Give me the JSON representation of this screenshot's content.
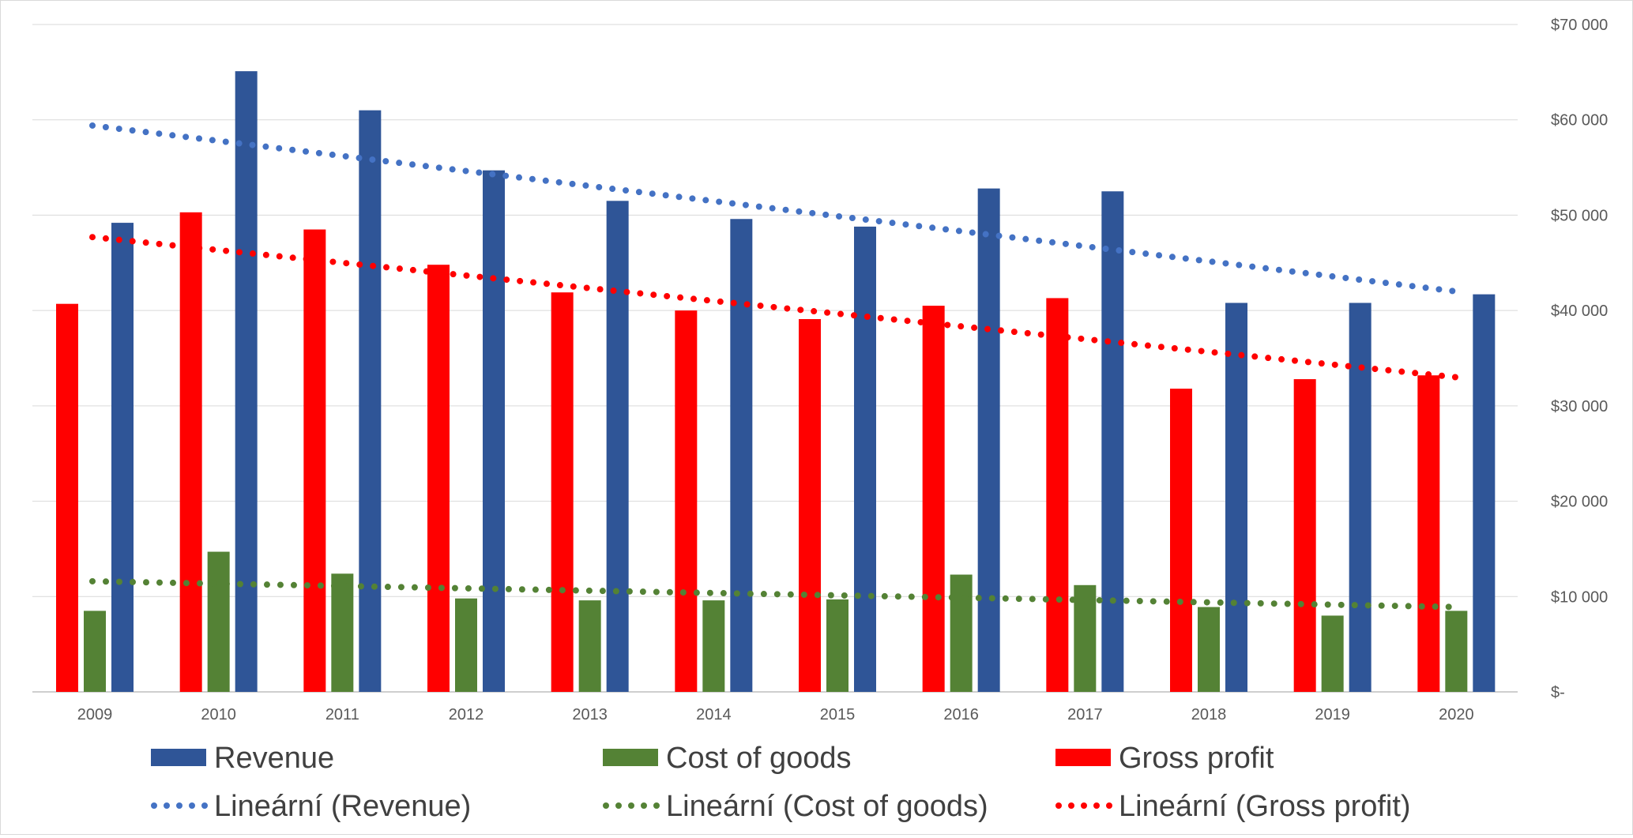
{
  "chart_data": {
    "type": "bar",
    "categories": [
      "2009",
      "2010",
      "2011",
      "2012",
      "2013",
      "2014",
      "2015",
      "2016",
      "2017",
      "2018",
      "2019",
      "2020"
    ],
    "series": [
      {
        "name": "Gross profit",
        "color": "#ff0000",
        "values": [
          40700,
          50300,
          48500,
          44800,
          41900,
          40000,
          39100,
          40500,
          41300,
          31800,
          32800,
          33200
        ]
      },
      {
        "name": "Cost of goods",
        "color": "#548235",
        "values": [
          8500,
          14700,
          12400,
          9800,
          9600,
          9600,
          9700,
          12300,
          11200,
          8900,
          8000,
          8500
        ]
      },
      {
        "name": "Revenue",
        "color": "#2f5597",
        "values": [
          49200,
          65100,
          61000,
          54700,
          51500,
          49600,
          48800,
          52800,
          52500,
          40800,
          40800,
          41700
        ]
      }
    ],
    "trendlines": [
      {
        "name": "Lineární (Revenue)",
        "color": "#4472c4",
        "start": 59400,
        "end": 42000
      },
      {
        "name": "Lineární (Cost of goods)",
        "color": "#548235",
        "start": 11600,
        "end": 8900
      },
      {
        "name": "Lineární (Gross profit)",
        "color": "#ff0000",
        "start": 47700,
        "end": 33000
      }
    ],
    "y_ticks": [
      "$-",
      "$10 000",
      "$20 000",
      "$30 000",
      "$40 000",
      "$50 000",
      "$60 000",
      "$70 000"
    ],
    "ylim": [
      0,
      70000
    ],
    "y_axis_side": "right",
    "grid": true,
    "legend_placement": "bottom",
    "legend": [
      {
        "label": "Revenue",
        "kind": "bar",
        "color": "#2f5597"
      },
      {
        "label": "Cost of goods",
        "kind": "bar",
        "color": "#548235"
      },
      {
        "label": "Gross profit",
        "kind": "bar",
        "color": "#ff0000"
      },
      {
        "label": "Lineární (Revenue)",
        "kind": "dots",
        "color": "#4472c4"
      },
      {
        "label": "Lineární (Cost of goods)",
        "kind": "dots",
        "color": "#548235"
      },
      {
        "label": "Lineární (Gross profit)",
        "kind": "dots",
        "color": "#ff0000"
      }
    ]
  }
}
